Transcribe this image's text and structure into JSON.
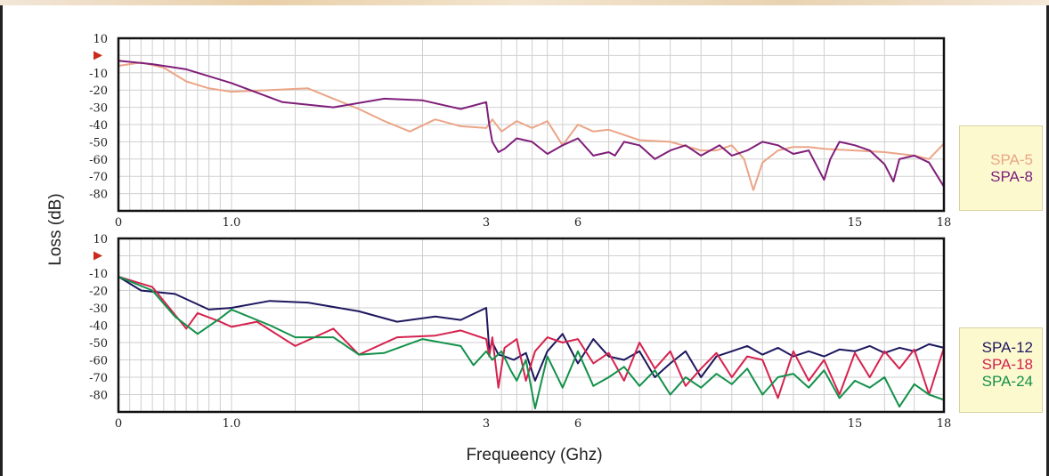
{
  "chart_data": {
    "type": "line",
    "xlabel": "Frequeency (Ghz)",
    "ylabel": "Loss (dB)",
    "x_tick_labels": [
      "0",
      "1.0",
      "3",
      "6",
      "15",
      "18"
    ],
    "y_tick_labels": [
      "10",
      "-10",
      "-20",
      "-30",
      "-40",
      "-50",
      "-60",
      "-70",
      "-80"
    ],
    "x_scale": "segmented (0-1.0, 1.0-3, 3-6, 6-15, 15-18 GHz)",
    "ylim": [
      -90,
      10
    ],
    "grid": true,
    "legend_position": "right",
    "reference_marker_db": 0,
    "colors": {
      "SPA-5": "#eba587",
      "SPA-8": "#7f1e79",
      "SPA-12": "#1d175e",
      "SPA-18": "#d5224e",
      "SPA-24": "#13914a",
      "marker": "#cc2a1e"
    },
    "panels": [
      {
        "series": [
          {
            "name": "SPA-5",
            "x": [
              0,
              0.2,
              0.4,
              0.6,
              0.8,
              1.0,
              1.3,
              1.6,
              1.8,
              2.0,
              2.2,
              2.4,
              2.6,
              2.8,
              3.0,
              3.2,
              3.5,
              4.0,
              4.5,
              5.0,
              5.5,
              6.0,
              6.5,
              7.0,
              8.0,
              9.0,
              10.0,
              10.5,
              11.0,
              11.4,
              11.7,
              12.0,
              12.5,
              13.0,
              13.5,
              14.0,
              15.0,
              16.0,
              17.0,
              17.5,
              18.0
            ],
            "values": [
              -6,
              -4,
              -7,
              -15,
              -19,
              -21,
              -20,
              -19,
              -25,
              -31,
              -38,
              -44,
              -37,
              -41,
              -42,
              -37,
              -44,
              -38,
              -42,
              -38,
              -52,
              -40,
              -44,
              -43,
              -49,
              -50,
              -55,
              -55,
              -52,
              -60,
              -78,
              -62,
              -55,
              -53,
              -53,
              -54,
              -55,
              -56,
              -58,
              -60,
              -51
            ]
          },
          {
            "name": "SPA-8",
            "x": [
              0,
              0.3,
              0.6,
              1.0,
              1.4,
              1.8,
              2.2,
              2.5,
              2.8,
              3.0,
              3.1,
              3.2,
              3.4,
              3.6,
              4.0,
              4.5,
              5.0,
              5.5,
              6.0,
              6.5,
              7.0,
              7.2,
              7.5,
              8.0,
              8.5,
              9.0,
              9.5,
              10.0,
              10.3,
              10.6,
              11.0,
              11.5,
              12.0,
              12.5,
              13.0,
              13.5,
              14.0,
              14.2,
              14.5,
              15.0,
              15.5,
              16.0,
              16.3,
              16.5,
              17.0,
              17.5,
              18.0
            ],
            "values": [
              -3,
              -5,
              -8,
              -16,
              -27,
              -30,
              -25,
              -26,
              -31,
              -27,
              -40,
              -50,
              -56,
              -54,
              -48,
              -50,
              -57,
              -52,
              -48,
              -58,
              -56,
              -58,
              -50,
              -52,
              -60,
              -55,
              -52,
              -58,
              -55,
              -52,
              -58,
              -55,
              -50,
              -52,
              -57,
              -55,
              -72,
              -60,
              -50,
              -52,
              -55,
              -63,
              -73,
              -60,
              -58,
              -62,
              -76
            ]
          }
        ]
      },
      {
        "series": [
          {
            "name": "SPA-12",
            "x": [
              0,
              0.2,
              0.5,
              0.8,
              1.0,
              1.3,
              1.6,
              2.0,
              2.3,
              2.6,
              2.8,
              3.0,
              3.1,
              3.2,
              3.4,
              3.6,
              3.9,
              4.3,
              4.6,
              5.0,
              5.5,
              6.0,
              6.5,
              7.0,
              7.5,
              8.0,
              8.5,
              9.0,
              9.5,
              10.0,
              10.5,
              11.0,
              11.5,
              12.0,
              12.5,
              13.0,
              13.5,
              14.0,
              14.5,
              15.0,
              15.5,
              16.0,
              16.5,
              17.0,
              17.5,
              18.0
            ],
            "values": [
              -12,
              -20,
              -22,
              -31,
              -30,
              -26,
              -27,
              -32,
              -38,
              -35,
              -37,
              -30,
              -54,
              -50,
              -57,
              -58,
              -60,
              -56,
              -72,
              -55,
              -45,
              -62,
              -48,
              -58,
              -60,
              -55,
              -70,
              -62,
              -55,
              -70,
              -58,
              -55,
              -52,
              -57,
              -53,
              -58,
              -55,
              -58,
              -54,
              -55,
              -52,
              -56,
              -53,
              -55,
              -51,
              -53
            ]
          },
          {
            "name": "SPA-18",
            "x": [
              0,
              0.3,
              0.6,
              0.7,
              0.9,
              1.0,
              1.2,
              1.5,
              1.8,
              2.0,
              2.3,
              2.6,
              2.8,
              3.0,
              3.1,
              3.2,
              3.4,
              3.6,
              4.0,
              4.3,
              4.6,
              5.0,
              5.5,
              6.0,
              6.5,
              7.0,
              7.5,
              8.0,
              8.5,
              9.0,
              9.5,
              10.0,
              10.5,
              11.0,
              11.5,
              12.0,
              12.5,
              13.0,
              13.5,
              14.0,
              14.5,
              15.0,
              15.5,
              16.0,
              16.5,
              17.0,
              17.5,
              18.0
            ],
            "values": [
              -12,
              -18,
              -42,
              -33,
              -38,
              -41,
              -38,
              -52,
              -42,
              -57,
              -47,
              -46,
              -43,
              -48,
              -58,
              -47,
              -76,
              -53,
              -48,
              -72,
              -55,
              -47,
              -50,
              -48,
              -62,
              -56,
              -72,
              -50,
              -65,
              -55,
              -75,
              -65,
              -56,
              -70,
              -58,
              -60,
              -82,
              -55,
              -72,
              -60,
              -80,
              -56,
              -70,
              -55,
              -65,
              -54,
              -80,
              -53
            ]
          },
          {
            "name": "SPA-24",
            "x": [
              0,
              0.3,
              0.5,
              0.7,
              0.9,
              1.0,
              1.3,
              1.5,
              1.8,
              2.0,
              2.2,
              2.5,
              2.8,
              2.9,
              3.0,
              3.2,
              3.5,
              3.8,
              4.0,
              4.3,
              4.6,
              5.0,
              5.5,
              6.0,
              6.5,
              7.0,
              7.5,
              8.0,
              8.5,
              9.0,
              9.5,
              10.0,
              10.5,
              11.0,
              11.5,
              12.0,
              12.5,
              13.0,
              13.5,
              14.0,
              14.5,
              15.0,
              15.5,
              16.0,
              16.5,
              17.0,
              17.5,
              18.0
            ],
            "values": [
              -12,
              -20,
              -35,
              -45,
              -36,
              -31,
              -40,
              -47,
              -47,
              -57,
              -56,
              -48,
              -52,
              -63,
              -55,
              -60,
              -55,
              -66,
              -72,
              -60,
              -88,
              -58,
              -76,
              -55,
              -75,
              -70,
              -64,
              -75,
              -66,
              -80,
              -70,
              -76,
              -68,
              -74,
              -65,
              -80,
              -70,
              -68,
              -76,
              -66,
              -82,
              -72,
              -76,
              -70,
              -87,
              -74,
              -80,
              -83
            ]
          }
        ]
      }
    ]
  }
}
